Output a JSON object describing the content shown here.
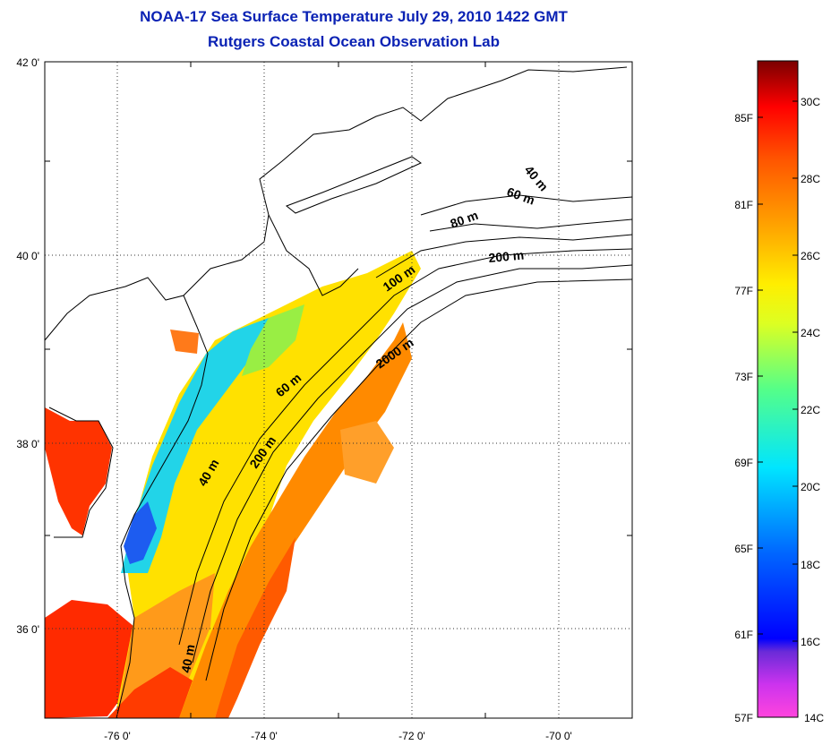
{
  "header": {
    "title": "NOAA-17 Sea Surface Temperature July 29, 2010 1422 GMT",
    "subtitle": "Rutgers Coastal Ocean Observation Lab"
  },
  "map": {
    "lat_labels": [
      "42 0'",
      "40 0'",
      "38 0'",
      "36 0'"
    ],
    "lon_labels": [
      "-76 0'",
      "-74 0'",
      "-72 0'",
      "-70 0'"
    ],
    "lat_range": [
      35.0,
      42.0
    ],
    "lon_range": [
      -77.0,
      -69.0
    ],
    "grid": "dotted",
    "isobath_labels": [
      {
        "text": "40 m"
      },
      {
        "text": "60 m"
      },
      {
        "text": "80 m"
      },
      {
        "text": "100 m"
      },
      {
        "text": "200 m"
      },
      {
        "text": "2000 m"
      },
      {
        "text": "60 m"
      },
      {
        "text": "200 m"
      },
      {
        "text": "40 m"
      },
      {
        "text": "40 m"
      }
    ]
  },
  "colorbar": {
    "fahrenheit_labels": [
      "85F",
      "81F",
      "77F",
      "73F",
      "69F",
      "65F",
      "61F",
      "57F"
    ],
    "celsius_labels": [
      "30C",
      "28C",
      "26C",
      "24C",
      "22C",
      "20C",
      "18C",
      "16C",
      "14C"
    ],
    "range_celsius": [
      14,
      31
    ],
    "colors": [
      "#ff33cc",
      "#8a2be2",
      "#0000ff",
      "#00aaff",
      "#00ffff",
      "#66ff66",
      "#ffff00",
      "#ff9900",
      "#ff0000",
      "#800000"
    ]
  }
}
